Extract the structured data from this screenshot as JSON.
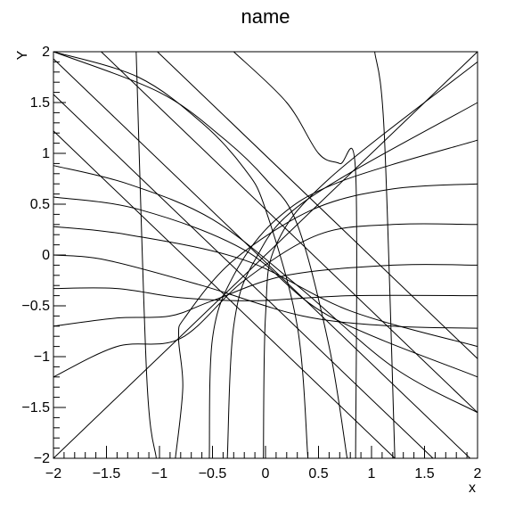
{
  "chart_data": {
    "type": "line",
    "title": "name",
    "xlabel": "x",
    "ylabel": "Y",
    "xlim": [
      -2,
      2
    ],
    "ylim": [
      -2,
      2
    ],
    "x_ticks": [
      -2,
      -1.5,
      -1,
      -0.5,
      0,
      0.5,
      1,
      1.5,
      2
    ],
    "y_ticks": [
      -2,
      -1.5,
      -1,
      -0.5,
      0,
      0.5,
      1,
      1.5,
      2
    ],
    "x_tick_labels": [
      "−2",
      "−1.5",
      "−1",
      "−0.5",
      "0",
      "0.5",
      "1",
      "1.5",
      "2"
    ],
    "y_tick_labels": [
      "−2",
      "−1.5",
      "−1",
      "−0.5",
      "0",
      "0.5",
      "1",
      "1.5",
      "2"
    ],
    "grid": false,
    "line_color": "#000000",
    "series": [
      {
        "x": [
          -2,
          2
        ],
        "y": [
          -2,
          2
        ]
      },
      {
        "x": [
          1.03,
          1.12,
          1.22
        ],
        "y": [
          2,
          1.2,
          -2
        ]
      },
      {
        "x": [
          -1.22,
          -1.12,
          -1.03
        ],
        "y": [
          2,
          -1.2,
          -2
        ]
      },
      {
        "x": [
          -1.02,
          2
        ],
        "y": [
          2,
          -1.02
        ]
      },
      {
        "x": [
          -1.55,
          2
        ],
        "y": [
          2,
          -1.55
        ]
      },
      {
        "x": [
          -2,
          1.93
        ],
        "y": [
          1.93,
          -2
        ]
      },
      {
        "x": [
          -2,
          1.58
        ],
        "y": [
          1.58,
          -2
        ]
      },
      {
        "x": [
          -2,
          1.22
        ],
        "y": [
          1.22,
          -2
        ]
      },
      {
        "x": [
          -2,
          -1.3,
          -0.5,
          0.3,
          1.2,
          2
        ],
        "y": [
          0.88,
          0.7,
          0.35,
          -0.3,
          -1.1,
          -1.55
        ]
      },
      {
        "x": [
          -2,
          -1.2,
          -0.2,
          0.6,
          2
        ],
        "y": [
          0.57,
          0.45,
          0.05,
          -0.6,
          -1.2
        ]
      },
      {
        "x": [
          -2,
          -1.3,
          -0.2,
          0.8,
          2
        ],
        "y": [
          0.28,
          0.2,
          -0.05,
          -0.55,
          -0.9
        ]
      },
      {
        "x": [
          -2,
          -1.5,
          -0.6,
          0.35,
          1.2,
          2
        ],
        "y": [
          0.0,
          -0.05,
          -0.3,
          -0.6,
          -0.7,
          -0.72
        ]
      },
      {
        "x": [
          -2,
          -1.4,
          -0.8,
          -0.1,
          0.8,
          2
        ],
        "y": [
          -0.33,
          -0.33,
          -0.42,
          -0.45,
          -0.4,
          -0.4
        ]
      },
      {
        "x": [
          -2,
          -1.4,
          -0.9,
          -0.5,
          0.2,
          1.2,
          2
        ],
        "y": [
          -0.7,
          -0.62,
          -0.6,
          -0.45,
          -0.2,
          -0.1,
          -0.1
        ]
      },
      {
        "x": [
          -2,
          -1.4,
          -0.8,
          -0.2,
          0.5,
          1.2,
          2
        ],
        "y": [
          -1.2,
          -0.9,
          -0.82,
          -0.25,
          0.2,
          0.3,
          0.3
        ]
      },
      {
        "x": [
          -0.85,
          -0.78,
          -0.82,
          -0.75,
          -0.3,
          0.45,
          1.2,
          2
        ],
        "y": [
          -2,
          -1.3,
          -0.8,
          -0.6,
          -0.05,
          0.45,
          0.65,
          0.7
        ]
      },
      {
        "x": [
          -0.53,
          -0.5,
          -0.3,
          0.1,
          0.7,
          2
        ],
        "y": [
          -2,
          -0.82,
          -0.2,
          0.35,
          0.72,
          1.13
        ]
      },
      {
        "x": [
          -0.36,
          -0.3,
          -0.1,
          0.4,
          2
        ],
        "y": [
          -2,
          -0.7,
          -0.05,
          0.55,
          1.5
        ]
      },
      {
        "x": [
          -0.02,
          0.0,
          0.1,
          0.6,
          2
        ],
        "y": [
          -2,
          -0.6,
          0.1,
          0.75,
          1.9
        ]
      },
      {
        "x": [
          0.4,
          0.3,
          0.0,
          -0.2,
          -0.6,
          -1.2,
          -2
        ],
        "y": [
          -2,
          -0.7,
          0.45,
          0.85,
          1.3,
          1.75,
          2
        ]
      },
      {
        "x": [
          0.77,
          0.6,
          0.3,
          0.0,
          -0.4,
          -1.0,
          -2
        ],
        "y": [
          -2,
          -0.9,
          0.3,
          0.75,
          1.15,
          1.6,
          2
        ]
      },
      {
        "x": [
          -0.3,
          0.2,
          0.5,
          0.7,
          0.85,
          0.85
        ],
        "y": [
          2,
          1.5,
          1.0,
          0.9,
          0.82,
          -2
        ]
      }
    ]
  }
}
